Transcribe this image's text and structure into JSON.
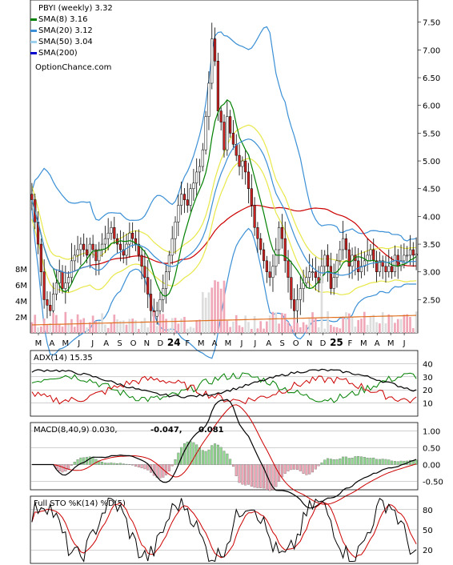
{
  "chart_data": [
    {
      "type": "candlestick",
      "panel": "price",
      "title": "PBYI (weekly) 3.32",
      "source_label": "OptionChance.com",
      "legend_placement": "top-left",
      "legend": [
        {
          "name": "SMA(8) 3.16",
          "color": "#008000"
        },
        {
          "name": "SMA(20) 3.12",
          "color": "#3a8fd6"
        },
        {
          "name": "SMA(50) 3.04",
          "color": "#9ccfee"
        },
        {
          "name": "SMA(200)",
          "color": "#0000cc"
        }
      ],
      "ylim": [
        1.9,
        7.9
      ],
      "yticks": [
        "7.50",
        "7.00",
        "6.50",
        "6.00",
        "5.50",
        "5.00",
        "4.50",
        "4.00",
        "3.50",
        "3.00",
        "2.50"
      ],
      "ytick_values": [
        7.5,
        7.0,
        6.5,
        6.0,
        5.5,
        5.0,
        4.5,
        4.0,
        3.5,
        3.0,
        2.5
      ],
      "xticks": [
        "M",
        "A",
        "M",
        "J",
        "J",
        "A",
        "S",
        "O",
        "N",
        "D",
        "24",
        "F",
        "M",
        "A",
        "M",
        "J",
        "J",
        "A",
        "S",
        "O",
        "N",
        "D",
        "25",
        "F",
        "M",
        "A",
        "M",
        "J"
      ],
      "close": [
        4.3,
        3.9,
        3.5,
        3.0,
        2.5,
        2.4,
        2.3,
        2.6,
        2.8,
        3.0,
        2.7,
        2.8,
        2.9,
        3.2,
        3.3,
        3.4,
        3.5,
        3.4,
        3.3,
        3.5,
        3.4,
        3.2,
        3.4,
        3.5,
        3.6,
        3.7,
        3.8,
        3.6,
        3.5,
        3.4,
        3.3,
        3.5,
        3.7,
        3.6,
        3.5,
        3.3,
        3.1,
        2.9,
        2.6,
        2.3,
        2.2,
        2.3,
        2.5,
        2.7,
        3.0,
        3.3,
        3.6,
        3.9,
        4.2,
        4.4,
        4.3,
        4.2,
        4.5,
        4.6,
        4.8,
        4.9,
        5.2,
        5.8,
        6.4,
        7.2,
        6.8,
        5.9,
        5.7,
        5.2,
        5.8,
        5.5,
        5.3,
        5.1,
        4.9,
        5.0,
        4.8,
        4.5,
        4.2,
        3.8,
        3.6,
        3.4,
        3.2,
        3.0,
        2.9,
        3.1,
        3.4,
        3.8,
        3.6,
        3.2,
        2.9,
        2.5,
        2.3,
        2.5,
        2.7,
        2.8,
        2.9,
        3.0,
        3.0,
        2.9,
        2.8,
        3.1,
        3.3,
        3.1,
        2.7,
        2.9,
        3.2,
        3.4,
        3.6,
        3.4,
        3.1,
        3.3,
        3.2,
        3.0,
        3.1,
        3.2,
        3.3,
        3.4,
        3.2,
        3.0,
        3.2,
        3.1,
        3.0,
        3.1,
        3.0,
        3.3,
        3.1,
        3.2,
        3.3,
        3.3,
        3.4,
        3.3,
        3.32
      ]
    },
    {
      "type": "bar",
      "panel": "volume",
      "yticks": [
        "8M",
        "6M",
        "4M",
        "2M"
      ],
      "ytick_values": [
        8,
        6,
        4,
        2
      ],
      "ylim": [
        0,
        10
      ],
      "unit": "M"
    },
    {
      "type": "line",
      "panel": "adx",
      "label": "ADX(14) 15.35",
      "yticks": [
        "40",
        "30",
        "20",
        "10"
      ],
      "ytick_values": [
        40,
        30,
        20,
        10
      ],
      "ylim": [
        0,
        50
      ]
    },
    {
      "type": "line",
      "panel": "macd",
      "label": "MACD(8,40,9) 0.030,",
      "label_neg": "-0.047,",
      "label_sig": "0.081",
      "yticks": [
        "1.00",
        "0.50",
        "0.00",
        "-0.50"
      ],
      "ytick_values": [
        1.0,
        0.5,
        0.0,
        -0.5
      ],
      "ylim": [
        -0.75,
        1.25
      ]
    },
    {
      "type": "line",
      "panel": "stochastic",
      "label": "Full STO %K(14) %D(5)",
      "yticks": [
        "80",
        "50",
        "20"
      ],
      "ytick_values": [
        80,
        50,
        20
      ],
      "ylim": [
        0,
        100
      ]
    }
  ]
}
